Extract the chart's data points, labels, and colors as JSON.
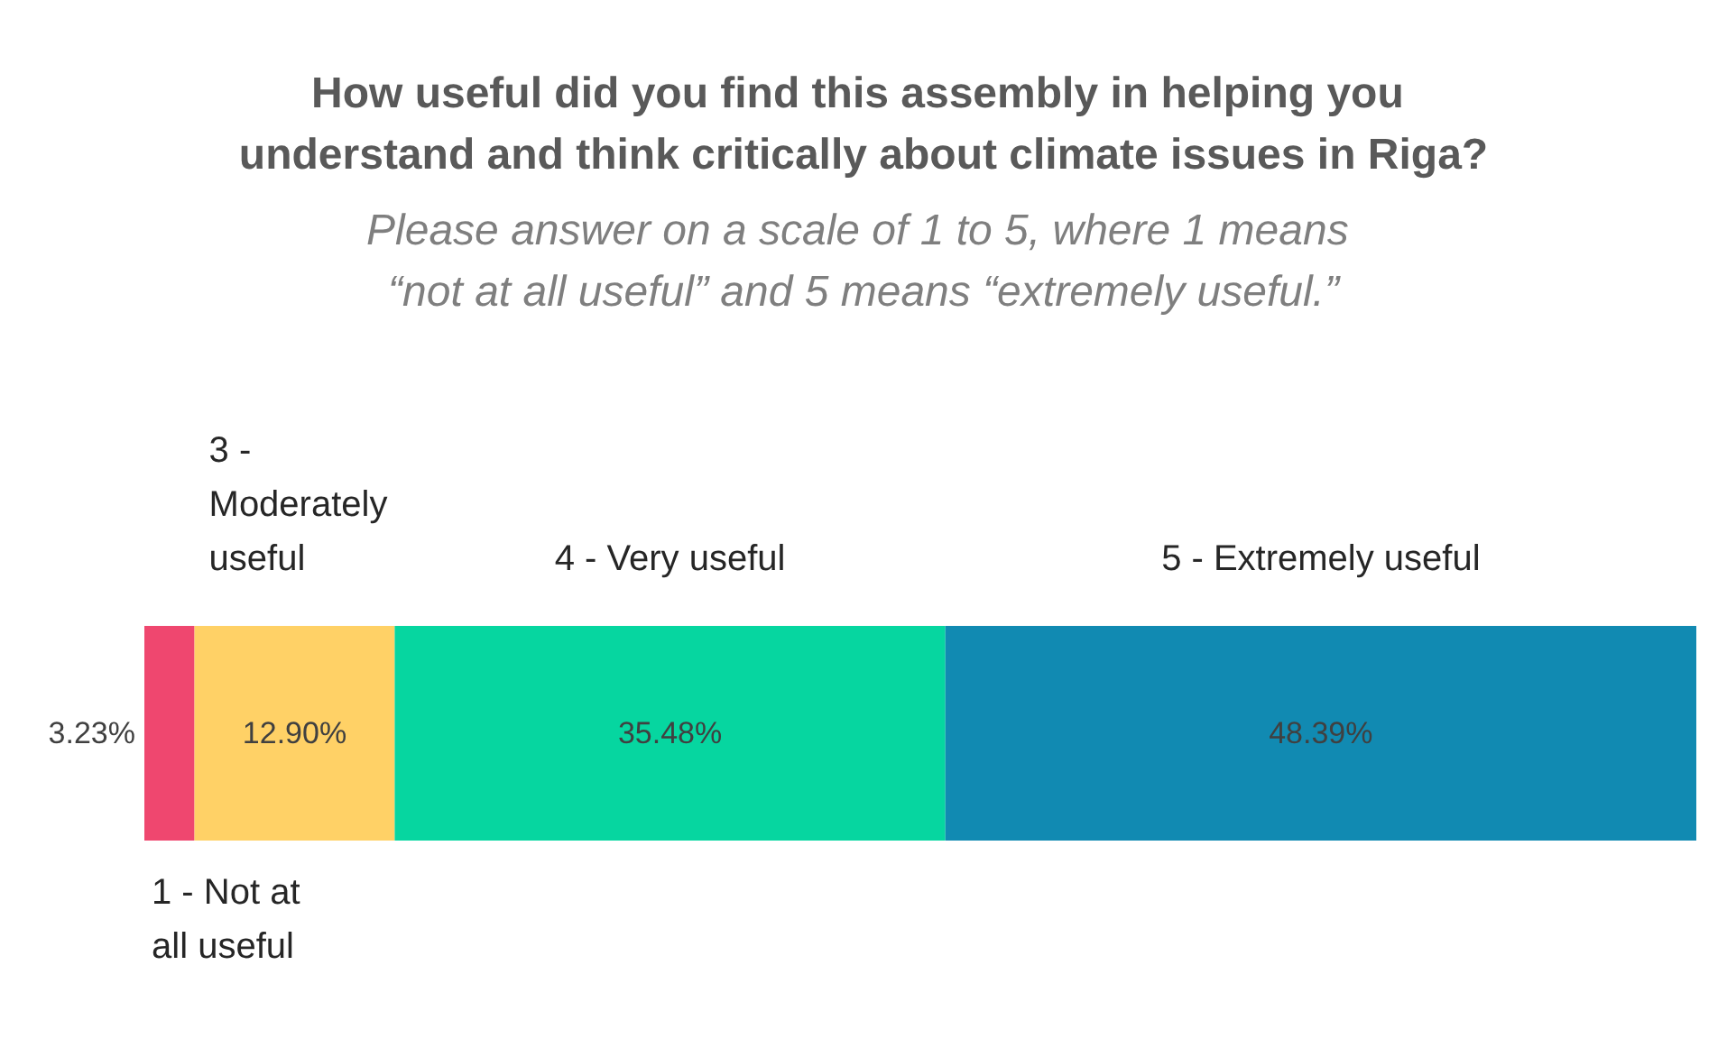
{
  "chart_data": {
    "type": "bar",
    "orientation": "horizontal",
    "stacked": true,
    "title": "How useful did you find this assembly in helping you understand and think critically about climate issues in Riga?",
    "subtitle": "Please answer on a scale of 1 to 5, where 1 means “not at all useful” and 5 means “extremely useful.”",
    "categories": [
      null
    ],
    "xlim": [
      0,
      100
    ],
    "tick_labels": false,
    "grid": false,
    "legend": false,
    "series": [
      {
        "name": "1 - Not at all useful",
        "color": "#ef476f",
        "values": [
          3.23
        ],
        "value_labels": [
          "3.23%"
        ]
      },
      {
        "name": "3 - Moderately useful",
        "color": "#ffd166",
        "values": [
          12.9
        ],
        "value_labels": [
          "12.90%"
        ]
      },
      {
        "name": "4 - Very useful",
        "color": "#06d6a0",
        "values": [
          35.48
        ],
        "value_labels": [
          "35.48%"
        ]
      },
      {
        "name": "5 - Extremely useful",
        "color": "#118ab2",
        "values": [
          48.39
        ],
        "value_labels": [
          "48.39%"
        ]
      }
    ]
  }
}
